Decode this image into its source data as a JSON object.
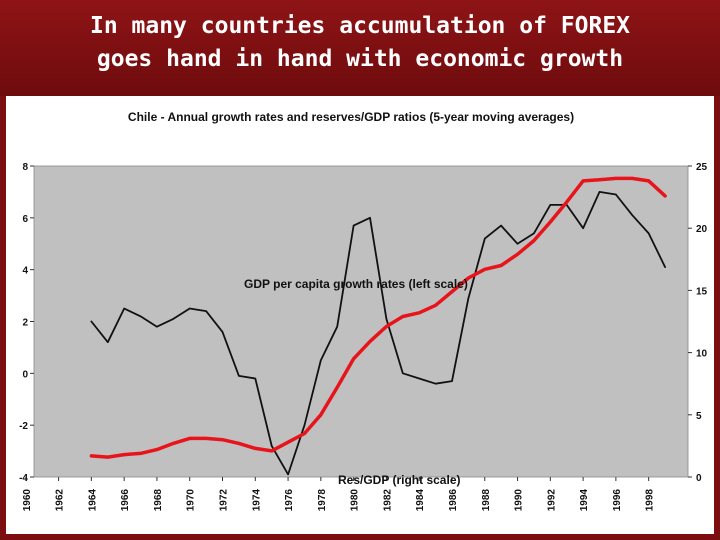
{
  "slide": {
    "title_line1": "In many countries accumulation of FOREX",
    "title_line2": "goes hand in hand with economic growth",
    "background_color": "#7a0e10"
  },
  "chart_data": {
    "type": "line",
    "title": "Chile - Annual growth rates and reserves/GDP ratios (5-year moving averages)",
    "xlabel": "",
    "ylabel": "",
    "x_ticks": [
      "1960",
      "1962",
      "1964",
      "1966",
      "1968",
      "1970",
      "1972",
      "1974",
      "1976",
      "1978",
      "1980",
      "1982",
      "1984",
      "1986",
      "1988",
      "1990",
      "1992",
      "1994",
      "1996",
      "1998"
    ],
    "xlim": [
      1960,
      2000
    ],
    "ylim_left": [
      -4,
      8
    ],
    "ylim_right": [
      0,
      25
    ],
    "left_ticks": [
      "-4",
      "-2",
      "0",
      "2",
      "4",
      "6",
      "8"
    ],
    "right_ticks": [
      "0",
      "5",
      "10",
      "15",
      "20",
      "25"
    ],
    "grid": false,
    "plot_background": "#c0c0c0",
    "annotations": {
      "gdp": "GDP per capita growth rates (left scale)",
      "reserves": "Res/GDP (right scale)"
    },
    "series": [
      {
        "name": "GDP per capita growth rates (left scale)",
        "axis": "left",
        "color": "#111111",
        "x": [
          1964,
          1965,
          1966,
          1967,
          1968,
          1969,
          1970,
          1971,
          1972,
          1973,
          1974,
          1975,
          1976,
          1977,
          1978,
          1979,
          1980,
          1981,
          1982,
          1983,
          1984,
          1985,
          1986,
          1987,
          1988,
          1989,
          1990,
          1991,
          1992,
          1993,
          1994,
          1995,
          1996,
          1997,
          1998,
          1999
        ],
        "y": [
          2.0,
          1.2,
          2.5,
          2.2,
          1.8,
          2.1,
          2.5,
          2.4,
          1.6,
          -0.1,
          -0.2,
          -2.8,
          -3.9,
          -2.0,
          0.5,
          1.8,
          5.7,
          6.0,
          2.1,
          0.0,
          -0.2,
          -0.4,
          -0.3,
          2.9,
          5.2,
          5.7,
          5.0,
          5.4,
          6.5,
          6.5,
          5.6,
          7.0,
          6.9,
          6.1,
          5.4,
          4.1
        ]
      },
      {
        "name": "Res/GDP (right scale)",
        "axis": "right",
        "color": "#e8141c",
        "x": [
          1964,
          1965,
          1966,
          1967,
          1968,
          1969,
          1970,
          1971,
          1972,
          1973,
          1974,
          1975,
          1976,
          1977,
          1978,
          1979,
          1980,
          1981,
          1982,
          1983,
          1984,
          1985,
          1986,
          1987,
          1988,
          1989,
          1990,
          1991,
          1992,
          1993,
          1994,
          1995,
          1996,
          1997,
          1998,
          1999
        ],
        "y": [
          1.7,
          1.6,
          1.8,
          1.9,
          2.2,
          2.7,
          3.1,
          3.1,
          3.0,
          2.7,
          2.3,
          2.1,
          2.8,
          3.5,
          5.0,
          7.2,
          9.5,
          10.9,
          12.1,
          12.9,
          13.2,
          13.8,
          14.9,
          16.0,
          16.7,
          17.0,
          17.9,
          19.0,
          20.5,
          22.1,
          23.8,
          23.9,
          24.0,
          24.0,
          23.8,
          22.6
        ]
      }
    ]
  }
}
